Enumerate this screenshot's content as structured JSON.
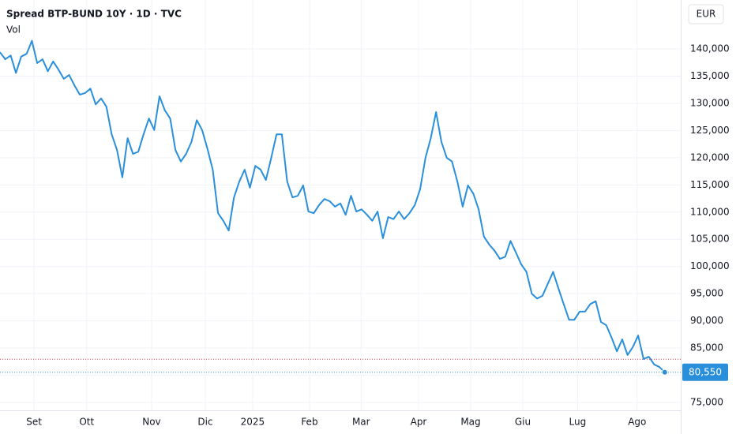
{
  "chart_data": {
    "type": "line",
    "title": "Spread BTP-BUND 10Y · 1D · TVC",
    "subtitle": "Vol",
    "currency": "EUR",
    "series": [
      {
        "name": "Spread BTP-BUND 10Y",
        "color": "#2a8fdb",
        "values": [
          139400,
          138100,
          138800,
          135600,
          138600,
          139100,
          141500,
          137400,
          138100,
          135900,
          137700,
          136200,
          134500,
          135200,
          133300,
          131600,
          131900,
          132700,
          129800,
          130900,
          129400,
          124300,
          121400,
          116400,
          123600,
          120700,
          121100,
          124300,
          127200,
          125100,
          131300,
          128700,
          127200,
          121400,
          119300,
          120700,
          122900,
          126900,
          125100,
          121700,
          117800,
          109800,
          108400,
          106600,
          112700,
          115600,
          117800,
          114500,
          118500,
          117800,
          115900,
          120000,
          124300,
          124300,
          115600,
          112700,
          113000,
          114900,
          110100,
          109800,
          111300,
          112400,
          112000,
          111000,
          111600,
          109500,
          113000,
          110100,
          110500,
          109500,
          108400,
          110100,
          105200,
          109100,
          108700,
          110100,
          108700,
          109800,
          111300,
          114200,
          120000,
          123600,
          128400,
          122900,
          120000,
          119300,
          115600,
          111000,
          114900,
          113400,
          110500,
          105500,
          104000,
          102900,
          101400,
          101800,
          104700,
          102600,
          100400,
          99000,
          95000,
          94100,
          94600,
          96800,
          99000,
          96000,
          93100,
          90200,
          90200,
          91700,
          91700,
          93100,
          93600,
          89800,
          89200,
          86900,
          84400,
          86600,
          83700,
          85200,
          87300,
          83000,
          83400,
          82000,
          81500,
          80550
        ],
        "last_label": "80,550"
      }
    ],
    "reference_line": {
      "value": 82950,
      "color": "#f23645"
    },
    "xlim": [
      0,
      128
    ],
    "xticks": [
      {
        "value": 6.4,
        "label": "Set"
      },
      {
        "value": 16.3,
        "label": "Ott"
      },
      {
        "value": 28.5,
        "label": "Nov"
      },
      {
        "value": 38.6,
        "label": "Dic"
      },
      {
        "value": 47.5,
        "label": "2025"
      },
      {
        "value": 58.2,
        "label": "Feb"
      },
      {
        "value": 67.9,
        "label": "Mar"
      },
      {
        "value": 78.7,
        "label": "Apr"
      },
      {
        "value": 88.5,
        "label": "Mag"
      },
      {
        "value": 98.3,
        "label": "Giu"
      },
      {
        "value": 108.6,
        "label": "Lug"
      },
      {
        "value": 119.8,
        "label": "Ago"
      }
    ],
    "ylim": [
      73550,
      149000
    ],
    "yticks": [
      {
        "value": 75000,
        "label": "75,000"
      },
      {
        "value": 80000,
        "label": "80,000"
      },
      {
        "value": 85000,
        "label": "85,000"
      },
      {
        "value": 90000,
        "label": "90,000"
      },
      {
        "value": 95000,
        "label": "95,000"
      },
      {
        "value": 100000,
        "label": "100,000"
      },
      {
        "value": 105000,
        "label": "105,000"
      },
      {
        "value": 110000,
        "label": "110,000"
      },
      {
        "value": 115000,
        "label": "115,000"
      },
      {
        "value": 120000,
        "label": "120,000"
      },
      {
        "value": 125000,
        "label": "125,000"
      },
      {
        "value": 130000,
        "label": "130,000"
      },
      {
        "value": 135000,
        "label": "135,000"
      },
      {
        "value": 140000,
        "label": "140,000"
      }
    ],
    "grid": true
  }
}
